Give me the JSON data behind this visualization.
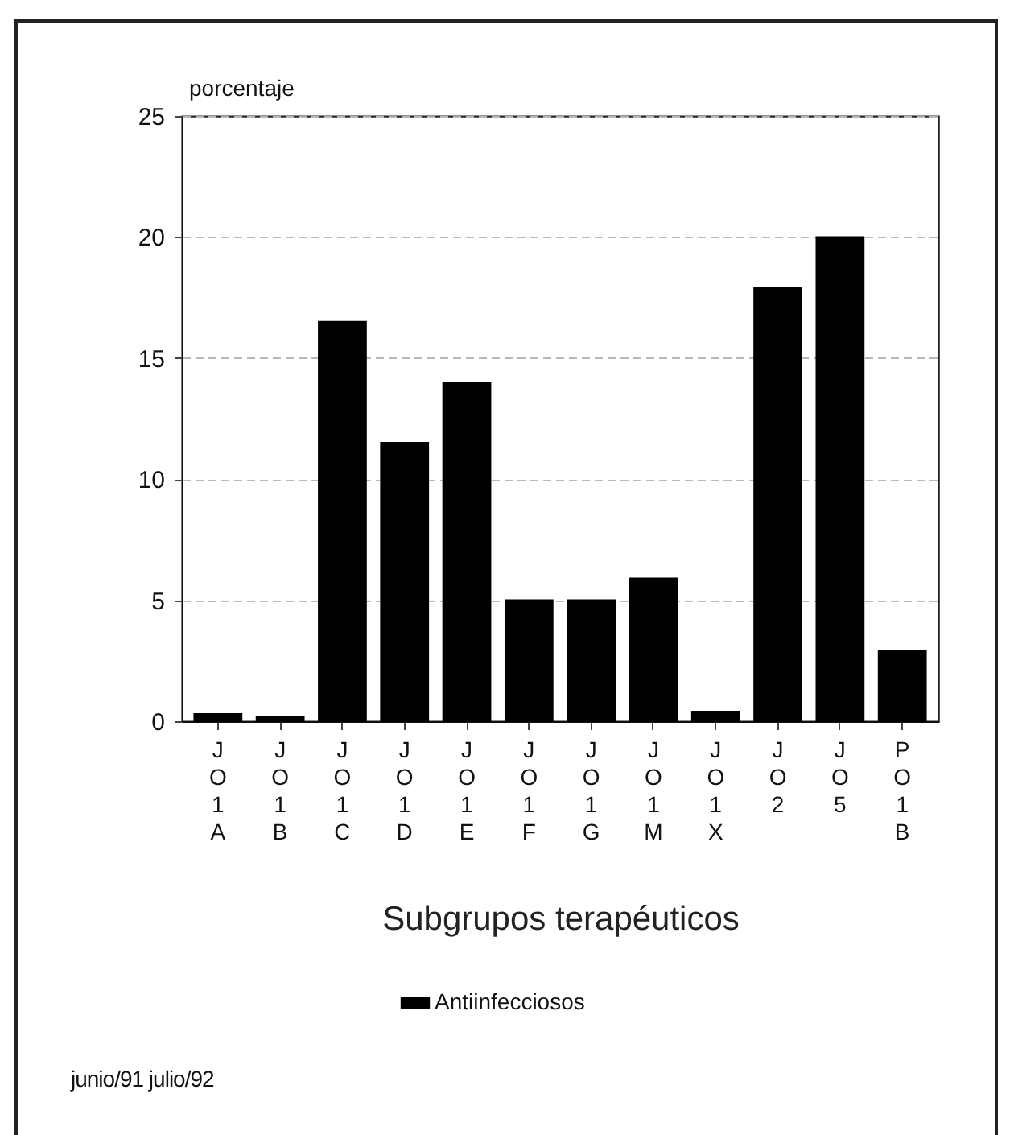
{
  "chart_data": {
    "type": "bar",
    "categories": [
      "JO1A",
      "JO1B",
      "JO1C",
      "JO1D",
      "JO1E",
      "JO1F",
      "JO1G",
      "JO1M",
      "JO1X",
      "JO2",
      "JO5",
      "PO1B"
    ],
    "series": [
      {
        "name": "Antiinfecciosos",
        "color": "#000000",
        "values": [
          0.3,
          0.2,
          16.5,
          11.5,
          14.0,
          5.0,
          5.0,
          5.9,
          0.4,
          17.9,
          20.0,
          2.9
        ]
      }
    ],
    "ylabel": "porcentaje",
    "xlabel": "Subgrupos terapéuticos",
    "ylim": [
      0,
      25
    ],
    "yticks": [
      0,
      5,
      10,
      15,
      20,
      25
    ],
    "grid": "y",
    "legend": "bottom",
    "annotations": [
      "junio/91 julio/92"
    ]
  }
}
